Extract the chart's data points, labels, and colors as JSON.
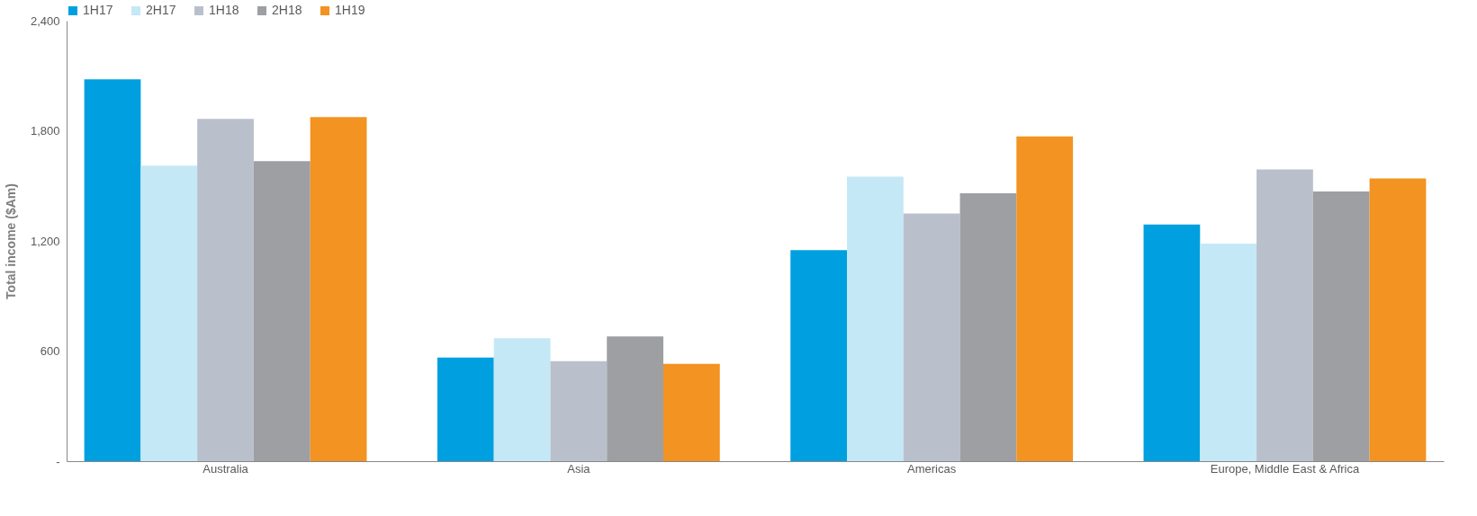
{
  "chart_data": {
    "type": "bar",
    "ylabel": "Total income ($Am)",
    "categories": [
      "Australia",
      "Asia",
      "Americas",
      "Europe, Middle East & Africa"
    ],
    "series": [
      {
        "name": "1H17",
        "color": "#00a0e0",
        "values": [
          2080,
          565,
          1150,
          1290
        ]
      },
      {
        "name": "2H17",
        "color": "#c5e8f6",
        "values": [
          1610,
          670,
          1550,
          1185
        ]
      },
      {
        "name": "1H18",
        "color": "#b9c0cc",
        "values": [
          1865,
          545,
          1350,
          1590
        ]
      },
      {
        "name": "2H18",
        "color": "#9d9fa2",
        "values": [
          1635,
          680,
          1460,
          1470
        ]
      },
      {
        "name": "1H19",
        "color": "#f39321",
        "values": [
          1875,
          530,
          1770,
          1540
        ]
      }
    ],
    "ylim": [
      0,
      2400
    ],
    "yticks": [
      {
        "value": 0,
        "label": "-"
      },
      600,
      {
        "value": 1200,
        "label": "1,200"
      },
      {
        "value": 1800,
        "label": "1,800"
      },
      {
        "value": 2400,
        "label": "2,400"
      }
    ],
    "legend": "top left",
    "grid": false
  }
}
